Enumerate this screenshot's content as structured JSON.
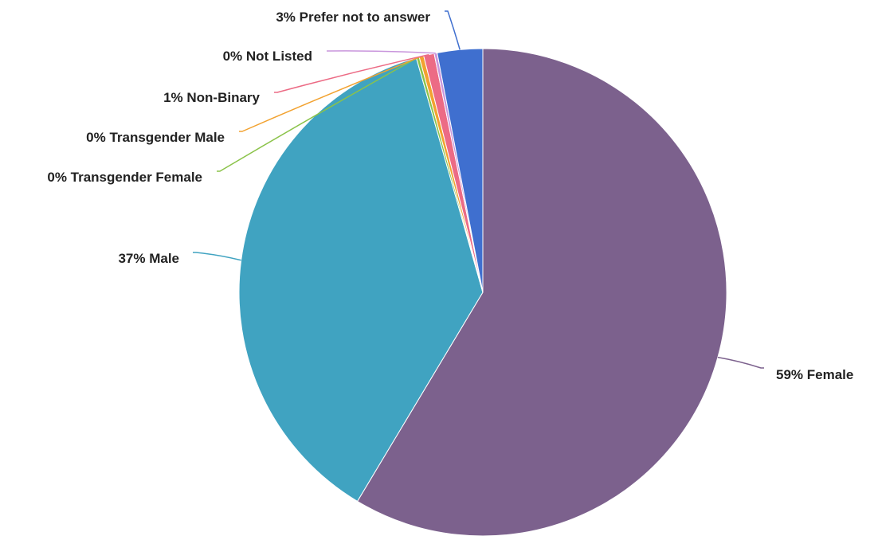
{
  "chart_data": {
    "type": "pie",
    "title": "",
    "series": [
      {
        "slices": [
          {
            "name": "Female",
            "label": "59% Female",
            "percent": 59,
            "value": 58.6,
            "color": "#7c618d"
          },
          {
            "name": "Male",
            "label": "37% Male",
            "percent": 37,
            "value": 37.0,
            "color": "#40a3c1"
          },
          {
            "name": "Transgender Female",
            "label": "0% Transgender Female",
            "percent": 0,
            "value": 0.2,
            "color": "#8bc34a"
          },
          {
            "name": "Transgender Male",
            "label": "0% Transgender Male",
            "percent": 0,
            "value": 0.3,
            "color": "#f2a230"
          },
          {
            "name": "Non-Binary",
            "label": "1% Non-Binary",
            "percent": 1,
            "value": 0.7,
            "color": "#ec6b85"
          },
          {
            "name": "Not Listed",
            "label": "0% Not Listed",
            "percent": 0,
            "value": 0.2,
            "color": "#c996dc"
          },
          {
            "name": "Prefer not to answer",
            "label": "3% Prefer not to answer",
            "percent": 3,
            "value": 3.0,
            "color": "#3f6fcf"
          }
        ]
      }
    ],
    "start_angle": "12 o'clock",
    "direction": "clockwise",
    "labels": "outside with leader lines"
  }
}
